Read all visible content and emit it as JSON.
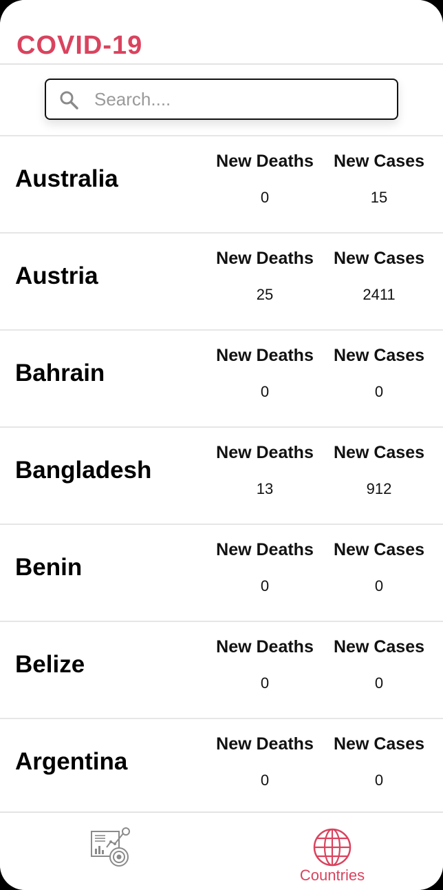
{
  "header": {
    "title": "COVID-19"
  },
  "search": {
    "placeholder": "Search....",
    "value": "",
    "icon": "search-icon"
  },
  "columns": {
    "deaths": "New Deaths",
    "cases": "New Cases"
  },
  "countries": [
    {
      "name": "Australia",
      "new_deaths": "0",
      "new_cases": "15"
    },
    {
      "name": "Austria",
      "new_deaths": "25",
      "new_cases": "2411"
    },
    {
      "name": "Bahrain",
      "new_deaths": "0",
      "new_cases": "0"
    },
    {
      "name": "Bangladesh",
      "new_deaths": "13",
      "new_cases": "912"
    },
    {
      "name": "Benin",
      "new_deaths": "0",
      "new_cases": "0"
    },
    {
      "name": "Belize",
      "new_deaths": "0",
      "new_cases": "0"
    },
    {
      "name": "Argentina",
      "new_deaths": "0",
      "new_cases": "0"
    }
  ],
  "tabs": [
    {
      "id": "stats",
      "label": "",
      "icon": "stats-chart-icon",
      "active": false
    },
    {
      "id": "countries",
      "label": "Countries",
      "icon": "globe-icon",
      "active": true
    }
  ],
  "colors": {
    "accent": "#d9435e",
    "inactive_icon": "#8a8a8a",
    "divider": "#e6e6e6"
  }
}
